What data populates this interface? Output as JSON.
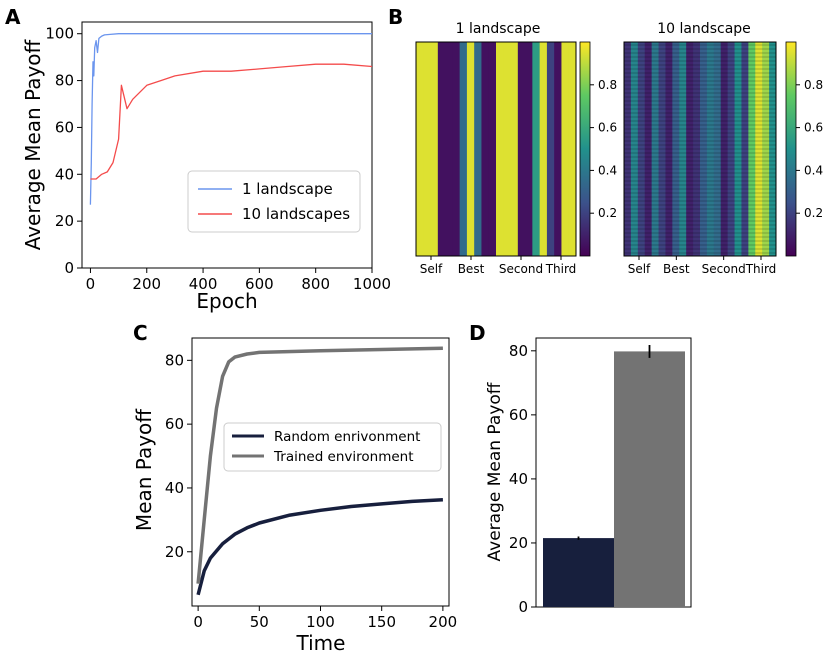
{
  "panels": {
    "A": {
      "letter": "A"
    },
    "B": {
      "letter": "B"
    },
    "C": {
      "letter": "C"
    },
    "D": {
      "letter": "D"
    }
  },
  "chart_data": [
    {
      "id": "A",
      "type": "line",
      "xlabel": "Epoch",
      "ylabel": "Average Mean Payoff",
      "xlim": [
        -30,
        1000
      ],
      "ylim": [
        0,
        105
      ],
      "xticks": [
        0,
        200,
        400,
        600,
        800,
        1000
      ],
      "yticks": [
        0,
        20,
        40,
        60,
        80,
        100
      ],
      "legend_position": "center-right",
      "series": [
        {
          "name": "1 landscape",
          "color": "#6b95ee",
          "points": [
            [
              0,
              27
            ],
            [
              3,
              45
            ],
            [
              6,
              70
            ],
            [
              9,
              88
            ],
            [
              12,
              82
            ],
            [
              15,
              94
            ],
            [
              20,
              97
            ],
            [
              25,
              92
            ],
            [
              30,
              98
            ],
            [
              40,
              99
            ],
            [
              50,
              99.5
            ],
            [
              70,
              99.7
            ],
            [
              100,
              100
            ],
            [
              1000,
              100
            ]
          ]
        },
        {
          "name": "10 landscapes",
          "color": "#f44b4b",
          "points": [
            [
              0,
              38
            ],
            [
              20,
              38
            ],
            [
              40,
              40
            ],
            [
              60,
              41
            ],
            [
              80,
              45
            ],
            [
              100,
              55
            ],
            [
              110,
              78
            ],
            [
              130,
              68
            ],
            [
              150,
              72
            ],
            [
              200,
              78
            ],
            [
              250,
              80
            ],
            [
              300,
              82
            ],
            [
              400,
              84
            ],
            [
              500,
              84
            ],
            [
              600,
              85
            ],
            [
              700,
              86
            ],
            [
              800,
              87
            ],
            [
              900,
              87
            ],
            [
              1000,
              86
            ]
          ]
        }
      ]
    },
    {
      "id": "B",
      "type": "heatmap",
      "maps": [
        {
          "title": "1 landscape",
          "xticklabels": [
            "Self",
            "Best",
            "Second",
            "Third"
          ],
          "colorbar_ticks": [
            0.2,
            0.4,
            0.6,
            0.8
          ],
          "column_values": [
            0.95,
            0.95,
            0.95,
            0.05,
            0.05,
            0.05,
            0.35,
            0.95,
            0.35,
            0.05,
            0.05,
            0.95,
            0.95,
            0.95,
            0.05,
            0.05,
            0.55,
            0.95,
            0.2,
            0.05,
            0.95,
            0.95
          ]
        },
        {
          "title": "10 landscape",
          "xticklabels": [
            "Self",
            "Best",
            "Second",
            "Third"
          ],
          "colorbar_ticks": [
            0.2,
            0.4,
            0.6,
            0.8
          ],
          "column_values": [
            0.15,
            0.45,
            0.2,
            0.1,
            0.4,
            0.2,
            0.1,
            0.3,
            0.45,
            0.1,
            0.15,
            0.3,
            0.4,
            0.35,
            0.1,
            0.2,
            0.5,
            0.2,
            0.75,
            0.95,
            0.85,
            0.5
          ]
        }
      ]
    },
    {
      "id": "C",
      "type": "line",
      "xlabel": "Time",
      "ylabel": "Mean Payoff",
      "xlim": [
        -5,
        205
      ],
      "ylim": [
        3,
        87
      ],
      "xticks": [
        0,
        50,
        100,
        150,
        200
      ],
      "yticks": [
        20,
        40,
        60,
        80
      ],
      "legend_position": "center-right",
      "series": [
        {
          "name": "Random enrivonment",
          "color": "#171f3d",
          "points": [
            [
              0,
              6.5
            ],
            [
              5,
              14
            ],
            [
              10,
              18
            ],
            [
              20,
              22.5
            ],
            [
              30,
              25.5
            ],
            [
              40,
              27.5
            ],
            [
              50,
              29
            ],
            [
              75,
              31.5
            ],
            [
              100,
              33
            ],
            [
              125,
              34.2
            ],
            [
              150,
              35
            ],
            [
              175,
              35.8
            ],
            [
              200,
              36.3
            ]
          ]
        },
        {
          "name": "Trained environment",
          "color": "#737373",
          "points": [
            [
              0,
              10
            ],
            [
              5,
              30
            ],
            [
              10,
              50
            ],
            [
              15,
              65
            ],
            [
              20,
              75
            ],
            [
              25,
              79.5
            ],
            [
              30,
              81
            ],
            [
              40,
              82
            ],
            [
              50,
              82.5
            ],
            [
              100,
              83
            ],
            [
              150,
              83.4
            ],
            [
              200,
              83.8
            ]
          ]
        }
      ]
    },
    {
      "id": "D",
      "type": "bar",
      "ylabel": "Average Mean Payoff",
      "ylim": [
        0,
        84
      ],
      "yticks": [
        0,
        20,
        40,
        60,
        80
      ],
      "bars": [
        {
          "value": 21.5,
          "error": 0.5,
          "color": "#171f3d"
        },
        {
          "value": 79.8,
          "error": 2.0,
          "color": "#737373"
        }
      ]
    }
  ]
}
